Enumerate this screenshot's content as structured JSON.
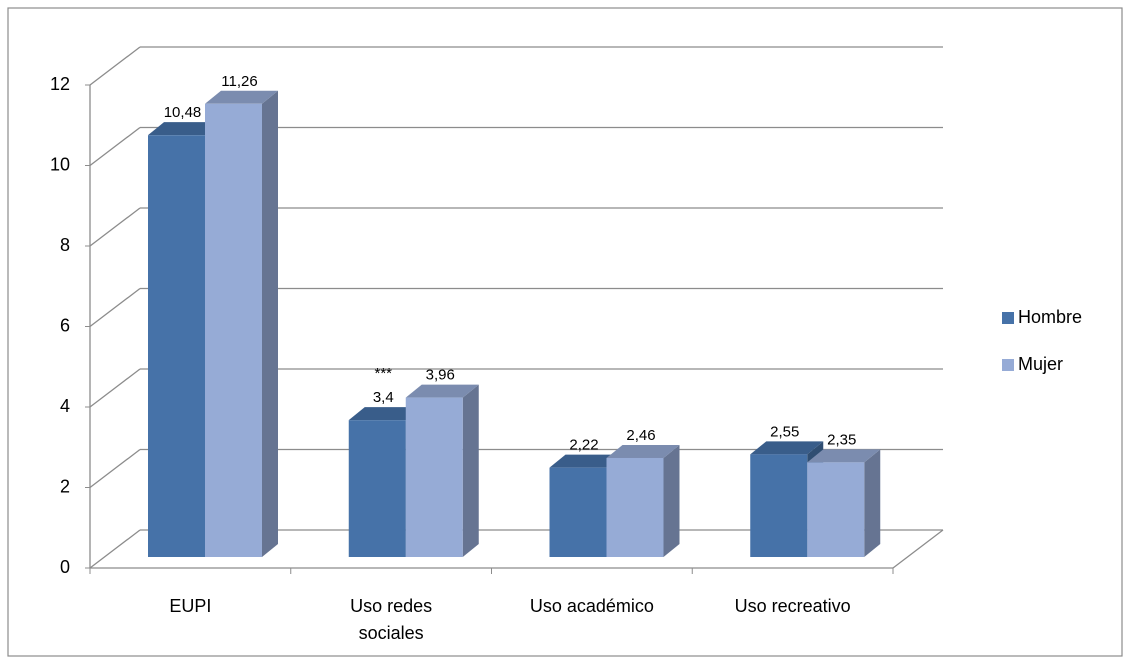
{
  "chart_data": {
    "type": "bar3d",
    "categories": [
      "EUPI",
      "Uso redes sociales",
      "Uso académico",
      "Uso recreativo"
    ],
    "series": [
      {
        "name": "Hombre",
        "color": "#4672a8",
        "values": [
          10.48,
          3.4,
          2.22,
          2.55
        ],
        "value_labels": [
          "10,48",
          "3,4",
          "2,22",
          "2,55"
        ]
      },
      {
        "name": "Mujer",
        "color": "#96abd6",
        "values": [
          11.26,
          3.96,
          2.46,
          2.35
        ],
        "value_labels": [
          "11,26",
          "3,96",
          "2,46",
          "2,35"
        ]
      }
    ],
    "annotation": "***",
    "ylim": [
      0,
      12
    ],
    "yticks": [
      0,
      2,
      4,
      6,
      8,
      10,
      12
    ],
    "grid": true,
    "legend": "right"
  }
}
